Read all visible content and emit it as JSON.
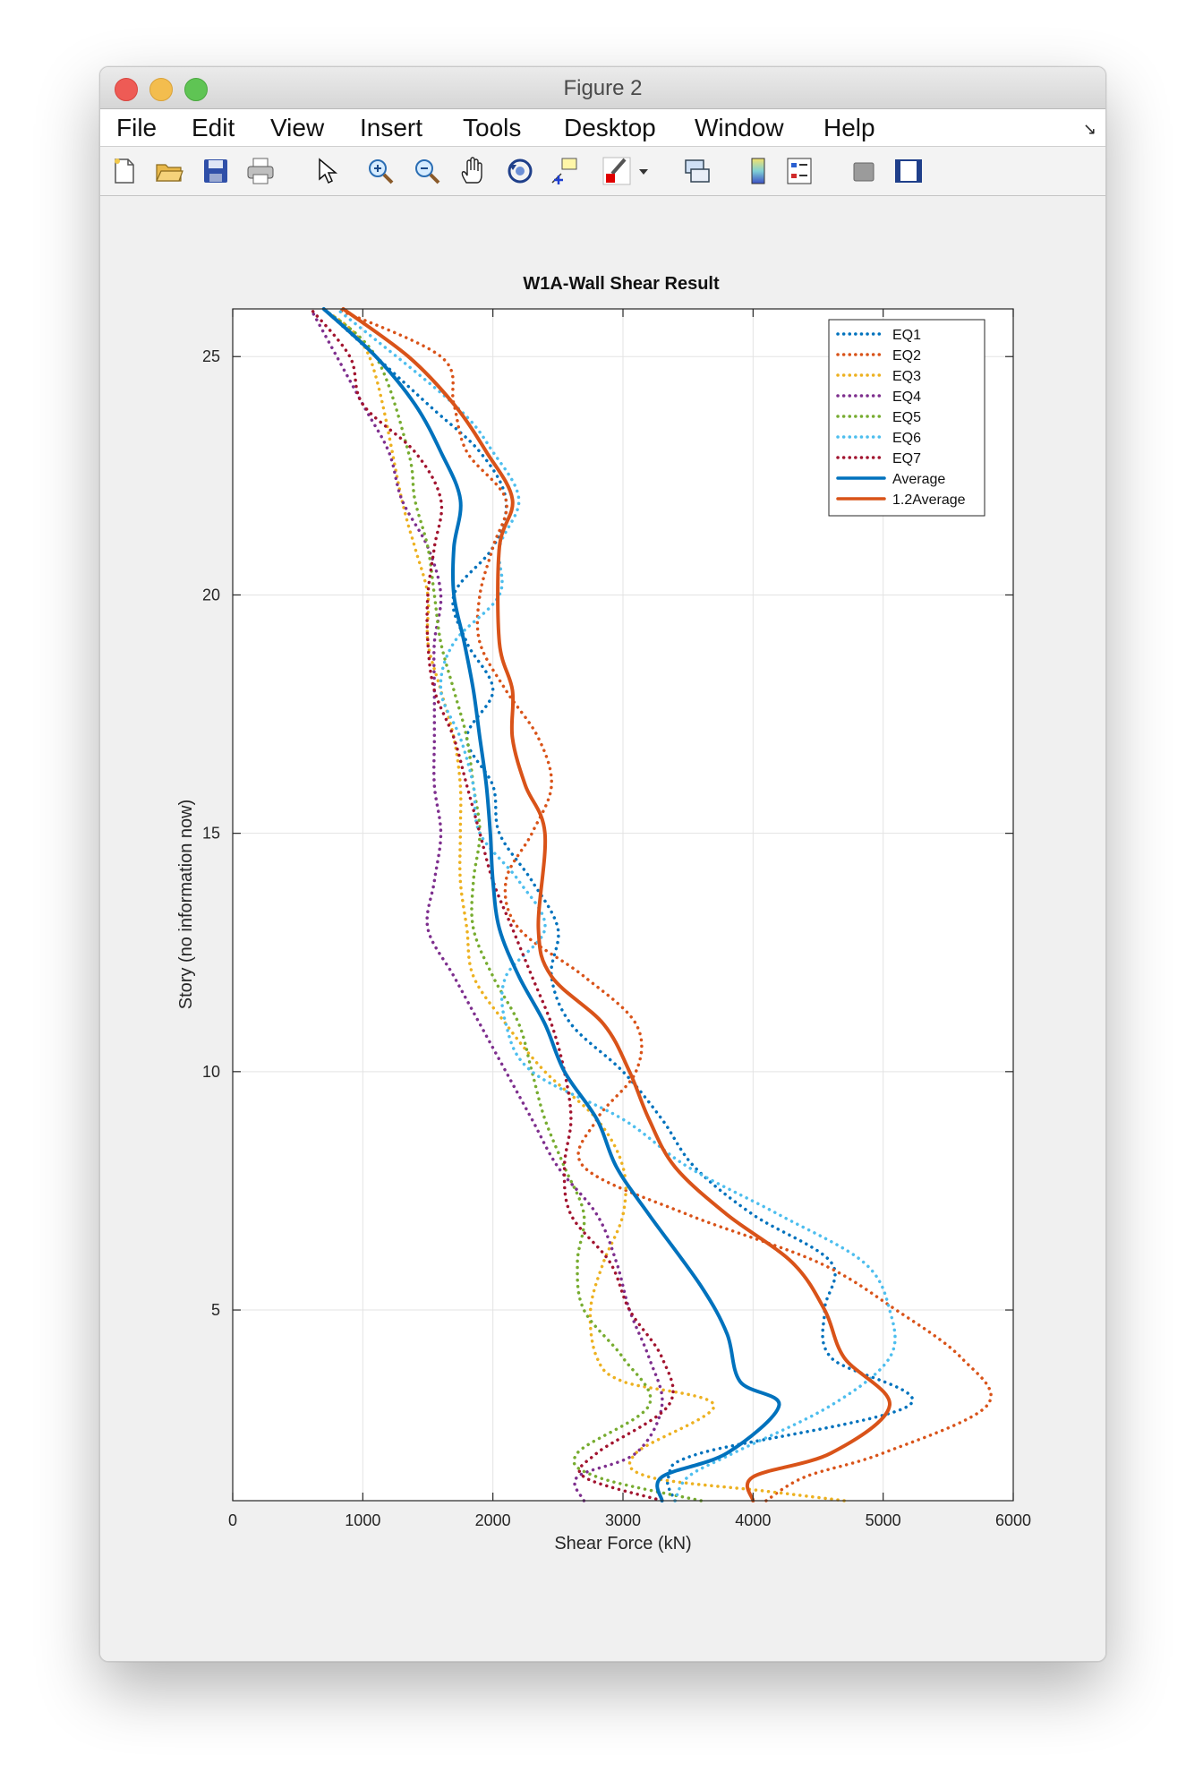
{
  "window": {
    "title": "Figure 2"
  },
  "menu": [
    "File",
    "Edit",
    "View",
    "Insert",
    "Tools",
    "Desktop",
    "Window",
    "Help"
  ],
  "menu_corner_icon": "undock-arrow-icon",
  "toolbar_icons": [
    "new-figure-icon",
    "open-file-icon",
    "save-icon",
    "print-icon",
    "select-arrow-icon",
    "zoom-in-icon",
    "zoom-out-icon",
    "pan-hand-icon",
    "rotate-3d-icon",
    "data-cursor-icon",
    "brush-icon",
    "brush-dropdown-icon",
    "link-plot-icon",
    "colorbar-icon",
    "legend-icon",
    "hide-plot-tools-icon",
    "show-plot-tools-icon"
  ],
  "chart_data": {
    "type": "line",
    "title": "W1A-Wall Shear Result",
    "xlabel": "Shear Force (kN)",
    "ylabel": "Story (no information now)",
    "xlim": [
      0,
      6000
    ],
    "ylim": [
      1,
      26
    ],
    "xticks": [
      0,
      1000,
      2000,
      3000,
      4000,
      5000,
      6000
    ],
    "yticks": [
      5,
      10,
      15,
      20,
      25
    ],
    "grid": true,
    "legend_position": "top-right",
    "series": [
      {
        "name": "EQ1",
        "style": "dotted",
        "color": "#0072BD",
        "x": [
          3400,
          3350,
          3600,
          5200,
          4600,
          4550,
          4600,
          4000,
          3550,
          3300,
          3000,
          2600,
          2450,
          2500,
          2300,
          2050,
          2000,
          1800,
          2000,
          1800,
          1700,
          2000,
          2100,
          1900,
          1500,
          700
        ],
        "y": [
          1,
          1.5,
          2,
          3,
          4,
          5,
          6,
          7,
          8,
          9,
          10,
          11,
          12,
          13,
          14,
          15,
          16,
          17,
          18,
          19,
          20,
          21,
          22,
          23,
          24,
          26
        ]
      },
      {
        "name": "EQ2",
        "style": "dotted",
        "color": "#D95319",
        "x": [
          4100,
          4400,
          5000,
          5800,
          5600,
          5100,
          4500,
          3500,
          2700,
          2800,
          3100,
          3100,
          2700,
          2200,
          2100,
          2300,
          2450,
          2350,
          2100,
          1900,
          1900,
          2000,
          2100,
          1800,
          1700,
          1600,
          800
        ],
        "y": [
          1,
          1.5,
          2,
          3,
          4,
          5,
          6,
          7,
          8,
          9,
          10,
          11,
          12,
          13,
          14,
          15,
          16,
          17,
          18,
          19,
          20,
          21,
          22,
          23,
          24,
          25,
          26
        ]
      },
      {
        "name": "EQ3",
        "style": "dotted",
        "color": "#EDB120",
        "x": [
          4700,
          4100,
          3200,
          3100,
          3700,
          3000,
          2800,
          2750,
          2850,
          3000,
          3000,
          2800,
          2400,
          2100,
          1850,
          1800,
          1750,
          1750,
          1750,
          1700,
          1600,
          1500,
          1500,
          1400,
          1300,
          1050,
          700
        ],
        "y": [
          1,
          1.2,
          1.5,
          2,
          3,
          3.5,
          4,
          5,
          6,
          7,
          8,
          9,
          10,
          11,
          12,
          13,
          14,
          15,
          16,
          17,
          18,
          19,
          20,
          21,
          22,
          25,
          26
        ]
      },
      {
        "name": "EQ4",
        "style": "dotted",
        "color": "#7E2F8E",
        "x": [
          2700,
          2650,
          3100,
          3300,
          3200,
          3050,
          2950,
          2800,
          2500,
          2300,
          2100,
          1900,
          1700,
          1500,
          1550,
          1600,
          1550,
          1550,
          1550,
          1550,
          1600,
          1500,
          1300,
          1200,
          1000,
          600
        ],
        "y": [
          1,
          1.5,
          2,
          3,
          4,
          5,
          6,
          7,
          8,
          9,
          10,
          11,
          12,
          13,
          14,
          15,
          16,
          17,
          18,
          19,
          20,
          21,
          22,
          23,
          24,
          26
        ]
      },
      {
        "name": "EQ5",
        "style": "dotted",
        "color": "#77AC30",
        "x": [
          3600,
          2800,
          2650,
          3200,
          3000,
          2700,
          2650,
          2700,
          2550,
          2400,
          2300,
          2200,
          2000,
          1850,
          1850,
          1900,
          1850,
          1800,
          1700,
          1600,
          1550,
          1500,
          1400,
          1350,
          1100,
          700
        ],
        "y": [
          1,
          1.5,
          2,
          3,
          4,
          5,
          6,
          7,
          8,
          9,
          10,
          11,
          12,
          13,
          14,
          15,
          16,
          17,
          18,
          19,
          20,
          21,
          22,
          23,
          25,
          26
        ]
      },
      {
        "name": "EQ6",
        "style": "dotted",
        "color": "#4DBEEE",
        "x": [
          3400,
          3500,
          3850,
          4600,
          5050,
          5050,
          4850,
          4200,
          3500,
          3000,
          2300,
          2100,
          2100,
          2400,
          2200,
          1900,
          1850,
          1750,
          1600,
          1700,
          2050,
          2050,
          2200,
          2000,
          1700,
          800
        ],
        "y": [
          1,
          1.5,
          2,
          3,
          4,
          5,
          6,
          7,
          8,
          9,
          10,
          11,
          12,
          13,
          14,
          15,
          16,
          17,
          18,
          19,
          20,
          21,
          22,
          23,
          24,
          26
        ]
      },
      {
        "name": "EQ7",
        "style": "dotted",
        "color": "#A2142F",
        "x": [
          3300,
          2700,
          2800,
          3350,
          3300,
          3050,
          2900,
          2600,
          2550,
          2600,
          2550,
          2450,
          2300,
          2150,
          2000,
          1900,
          1800,
          1700,
          1550,
          1500,
          1500,
          1550,
          1600,
          1400,
          1000,
          900,
          600
        ],
        "y": [
          1,
          1.5,
          2,
          3,
          4,
          5,
          6,
          7,
          8,
          9,
          10,
          11,
          12,
          13,
          14,
          15,
          16,
          17,
          18,
          19,
          20,
          21,
          22,
          23,
          24,
          25,
          26
        ]
      },
      {
        "name": "Average",
        "style": "solid",
        "color": "#0072BD",
        "x": [
          3300,
          3300,
          3800,
          4200,
          3900,
          3800,
          3600,
          3200,
          2950,
          2800,
          2550,
          2400,
          2200,
          2050,
          2000,
          1980,
          1950,
          1900,
          1850,
          1780,
          1700,
          1700,
          1750,
          1600,
          1400,
          1100,
          700
        ],
        "y": [
          1,
          1.5,
          2,
          3,
          3.5,
          4.5,
          5.5,
          7,
          8,
          9,
          10,
          11,
          12,
          13,
          14,
          15,
          16,
          17,
          18,
          19,
          20,
          21,
          22,
          23,
          24,
          25,
          26
        ]
      },
      {
        "name": "1.2Average",
        "style": "solid",
        "color": "#D95319",
        "x": [
          4000,
          4000,
          4600,
          5050,
          4700,
          4550,
          4300,
          3800,
          3400,
          3200,
          3050,
          2850,
          2450,
          2350,
          2400,
          2250,
          2150,
          2150,
          2050,
          2050,
          2150,
          1950,
          1700,
          1350,
          850
        ],
        "y": [
          1,
          1.5,
          2,
          3,
          4,
          5,
          6,
          7,
          8,
          9,
          10,
          11,
          12,
          13,
          15,
          16,
          17,
          18,
          19,
          21,
          22,
          23,
          24,
          25,
          26
        ]
      }
    ]
  }
}
